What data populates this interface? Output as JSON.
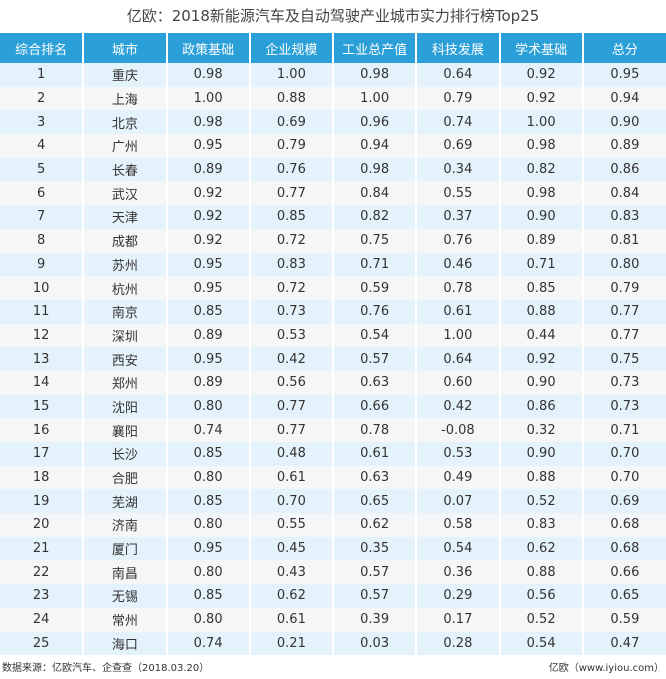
{
  "title": "亿欧：2018新能源汽车及自动驾驶产业城市实力排行榜Top25",
  "colors": {
    "header": "#2b9fd8",
    "row_odd": "#e4f2fb",
    "row_even": "#f5f6f7"
  },
  "columns": [
    "综合排名",
    "城市",
    "政策基础",
    "企业规模",
    "工业总产值",
    "科技发展",
    "学术基础",
    "总分"
  ],
  "rows": [
    [
      "1",
      "重庆",
      "0.98",
      "1.00",
      "0.98",
      "0.64",
      "0.92",
      "0.95"
    ],
    [
      "2",
      "上海",
      "1.00",
      "0.88",
      "1.00",
      "0.79",
      "0.92",
      "0.94"
    ],
    [
      "3",
      "北京",
      "0.98",
      "0.69",
      "0.96",
      "0.74",
      "1.00",
      "0.90"
    ],
    [
      "4",
      "广州",
      "0.95",
      "0.79",
      "0.94",
      "0.69",
      "0.98",
      "0.89"
    ],
    [
      "5",
      "长春",
      "0.89",
      "0.76",
      "0.98",
      "0.34",
      "0.82",
      "0.86"
    ],
    [
      "6",
      "武汉",
      "0.92",
      "0.77",
      "0.84",
      "0.55",
      "0.98",
      "0.84"
    ],
    [
      "7",
      "天津",
      "0.92",
      "0.85",
      "0.82",
      "0.37",
      "0.90",
      "0.83"
    ],
    [
      "8",
      "成都",
      "0.92",
      "0.72",
      "0.75",
      "0.76",
      "0.89",
      "0.81"
    ],
    [
      "9",
      "苏州",
      "0.95",
      "0.83",
      "0.71",
      "0.46",
      "0.71",
      "0.80"
    ],
    [
      "10",
      "杭州",
      "0.95",
      "0.72",
      "0.59",
      "0.78",
      "0.85",
      "0.79"
    ],
    [
      "11",
      "南京",
      "0.85",
      "0.73",
      "0.76",
      "0.61",
      "0.88",
      "0.77"
    ],
    [
      "12",
      "深圳",
      "0.89",
      "0.53",
      "0.54",
      "1.00",
      "0.44",
      "0.77"
    ],
    [
      "13",
      "西安",
      "0.95",
      "0.42",
      "0.57",
      "0.64",
      "0.92",
      "0.75"
    ],
    [
      "14",
      "郑州",
      "0.89",
      "0.56",
      "0.63",
      "0.60",
      "0.90",
      "0.73"
    ],
    [
      "15",
      "沈阳",
      "0.80",
      "0.77",
      "0.66",
      "0.42",
      "0.86",
      "0.73"
    ],
    [
      "16",
      "襄阳",
      "0.74",
      "0.77",
      "0.78",
      "-0.08",
      "0.32",
      "0.71"
    ],
    [
      "17",
      "长沙",
      "0.85",
      "0.48",
      "0.61",
      "0.53",
      "0.90",
      "0.70"
    ],
    [
      "18",
      "合肥",
      "0.80",
      "0.61",
      "0.63",
      "0.49",
      "0.88",
      "0.70"
    ],
    [
      "19",
      "芜湖",
      "0.85",
      "0.70",
      "0.65",
      "0.07",
      "0.52",
      "0.69"
    ],
    [
      "20",
      "济南",
      "0.80",
      "0.55",
      "0.62",
      "0.58",
      "0.83",
      "0.68"
    ],
    [
      "21",
      "厦门",
      "0.95",
      "0.45",
      "0.35",
      "0.54",
      "0.62",
      "0.68"
    ],
    [
      "22",
      "南昌",
      "0.80",
      "0.43",
      "0.57",
      "0.36",
      "0.88",
      "0.66"
    ],
    [
      "23",
      "无锡",
      "0.85",
      "0.62",
      "0.57",
      "0.29",
      "0.56",
      "0.65"
    ],
    [
      "24",
      "常州",
      "0.80",
      "0.61",
      "0.39",
      "0.17",
      "0.52",
      "0.59"
    ],
    [
      "25",
      "海口",
      "0.74",
      "0.21",
      "0.03",
      "0.28",
      "0.54",
      "0.47"
    ]
  ],
  "footer": {
    "source": "数据来源：亿欧汽车、企查查（2018.03.20）",
    "credit": "亿欧（www.iyiou.com）"
  }
}
